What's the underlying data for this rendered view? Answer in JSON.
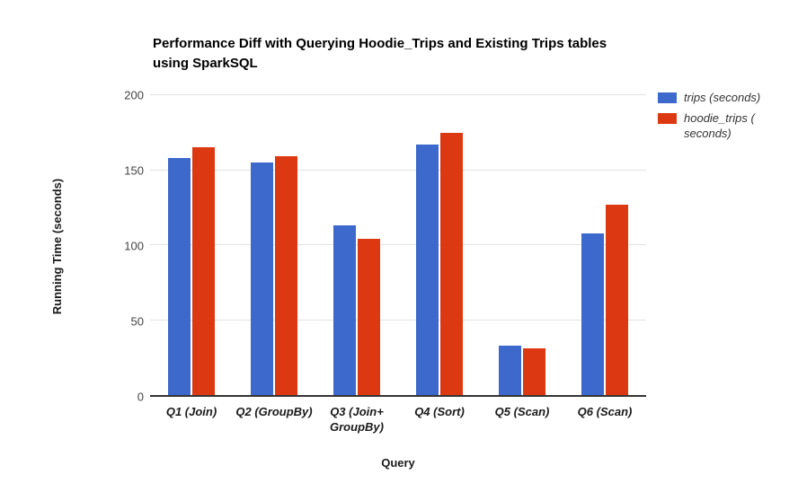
{
  "chart_data": {
    "type": "bar",
    "title": "Performance Diff with Querying Hoodie_Trips and Existing Trips tables using SparkSQL",
    "title_lines": [
      "Performance Diff with Querying Hoodie_Trips and Existing Trips tables",
      "using SparkSQL"
    ],
    "xlabel": "Query",
    "ylabel": "Running Time (seconds)",
    "ylim": [
      0,
      200
    ],
    "yticks": [
      0,
      50,
      100,
      150,
      200
    ],
    "grid": true,
    "legend_position": "right",
    "categories": [
      "Q1 (Join)",
      "Q2 (GroupBy)",
      "Q3 (Join+\nGroupBy)",
      "Q4 (Sort)",
      "Q5 (Scan)",
      "Q6 (Scan)"
    ],
    "series": [
      {
        "name": "trips (seconds)",
        "color": "#3c69cb",
        "values": [
          158,
          155,
          113,
          167,
          33,
          108
        ]
      },
      {
        "name": "hoodie_trips ( seconds)",
        "color": "#dc3912",
        "values": [
          165,
          159,
          104,
          175,
          31,
          127
        ]
      }
    ],
    "colors": {
      "trips": "#3c69cb",
      "hoodie_trips": "#dc3912",
      "gridline": "#e3e3e3",
      "axis_line": "#333333"
    }
  }
}
